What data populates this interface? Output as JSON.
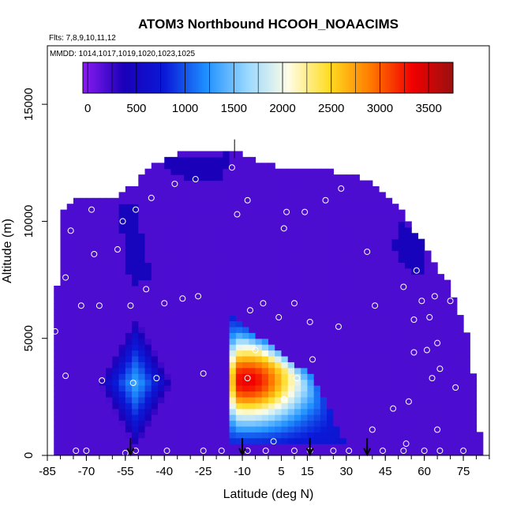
{
  "chart_data": {
    "type": "heatmap",
    "title": "ATOM3 Northbound HCOOH_NOAACIMS",
    "flights_label": "Flts: 7,8,9,10,11,12",
    "dates_label": "MMDD: 1014,1017,1019,1020,1023,1025",
    "xlabel": "Latitude (deg N)",
    "ylabel": "Altitude (m)",
    "xlim": [
      -85,
      85
    ],
    "ylim": [
      0,
      17500
    ],
    "x_ticks": [
      -85,
      -70,
      -55,
      -40,
      -25,
      -10,
      5,
      15,
      30,
      45,
      60,
      75
    ],
    "y_ticks": [
      0,
      5000,
      10000,
      15000
    ],
    "colorbar": {
      "range": [
        -50,
        3750
      ],
      "ticks": [
        0,
        500,
        1000,
        1500,
        2000,
        2500,
        3000,
        3500
      ],
      "colors": [
        "#8a1cf0",
        "#1a00b8",
        "#0a1ad8",
        "#1e90ff",
        "#9ad8ff",
        "#fffde6",
        "#ffdc20",
        "#ff7a00",
        "#f20000",
        "#9a1010"
      ]
    },
    "background_value": 180,
    "envelope": [
      [
        -82,
        0
      ],
      [
        -82,
        6000
      ],
      [
        -79,
        10500
      ],
      [
        -73,
        11000
      ],
      [
        -60,
        11000
      ],
      [
        -52,
        11500
      ],
      [
        -45,
        12400
      ],
      [
        -38,
        12800
      ],
      [
        -28,
        13000
      ],
      [
        -12,
        13000
      ],
      [
        0,
        12400
      ],
      [
        15,
        12200
      ],
      [
        30,
        12100
      ],
      [
        40,
        11600
      ],
      [
        50,
        10600
      ],
      [
        60,
        9000
      ],
      [
        70,
        7200
      ],
      [
        77,
        5000
      ],
      [
        80,
        2500
      ],
      [
        82,
        0
      ]
    ],
    "features": [
      {
        "name": "southern-diamond",
        "center": [
          -51,
          3100
        ],
        "half_width": 14,
        "half_height": 2800,
        "peak": 1350
      },
      {
        "name": "main-plume",
        "polygon": [
          [
            -15,
            6000
          ],
          [
            -15,
            500
          ],
          [
            30,
            500
          ],
          [
            17,
            3400
          ]
        ],
        "apex": [
          -8,
          3200
        ],
        "peak": 3350
      },
      {
        "name": "dark-streak",
        "polygon": [
          [
            -58,
            10800
          ],
          [
            -51,
            10800
          ],
          [
            -45,
            7500
          ],
          [
            -53,
            7300
          ]
        ],
        "peak": 450
      },
      {
        "name": "upper-streak",
        "polygon": [
          [
            -40,
            12700
          ],
          [
            -15,
            12900
          ],
          [
            -17,
            11800
          ],
          [
            -38,
            11900
          ]
        ],
        "peak": 380
      },
      {
        "name": "right-edge",
        "polygon": [
          [
            50,
            10200
          ],
          [
            62,
            9000
          ],
          [
            58,
            7400
          ],
          [
            48,
            8800
          ]
        ],
        "peak": 420
      }
    ],
    "sample_points": [
      [
        -82,
        5300
      ],
      [
        -78,
        3400
      ],
      [
        -78,
        7600
      ],
      [
        -76,
        9600
      ],
      [
        -72,
        6400
      ],
      [
        -68,
        10500
      ],
      [
        -67,
        8600
      ],
      [
        -65,
        6400
      ],
      [
        -64,
        3200
      ],
      [
        -58,
        8800
      ],
      [
        -56,
        10000
      ],
      [
        -53,
        6400
      ],
      [
        -52,
        3100
      ],
      [
        -51,
        10500
      ],
      [
        -47,
        7100
      ],
      [
        -45,
        11000
      ],
      [
        -43,
        3300
      ],
      [
        -40,
        6500
      ],
      [
        -36,
        11600
      ],
      [
        -33,
        6700
      ],
      [
        -28,
        11800
      ],
      [
        -27,
        6800
      ],
      [
        -25,
        3500
      ],
      [
        -14,
        12300
      ],
      [
        -12,
        10300
      ],
      [
        -8,
        10900
      ],
      [
        -8,
        3300
      ],
      [
        -7,
        6200
      ],
      [
        -5,
        4500
      ],
      [
        -2,
        6500
      ],
      [
        6,
        9700
      ],
      [
        7,
        10400
      ],
      [
        4,
        5900
      ],
      [
        6,
        2400
      ],
      [
        10,
        6500
      ],
      [
        11,
        3300
      ],
      [
        14,
        10400
      ],
      [
        16,
        5700
      ],
      [
        17,
        4100
      ],
      [
        22,
        10900
      ],
      [
        27,
        5500
      ],
      [
        28,
        11400
      ],
      [
        38,
        8700
      ],
      [
        40,
        1100
      ],
      [
        41,
        6400
      ],
      [
        48,
        2000
      ],
      [
        52,
        7200
      ],
      [
        54,
        2300
      ],
      [
        56,
        5800
      ],
      [
        56,
        4400
      ],
      [
        57,
        7900
      ],
      [
        59,
        6600
      ],
      [
        61,
        4500
      ],
      [
        62,
        5900
      ],
      [
        63,
        3300
      ],
      [
        64,
        8400
      ],
      [
        64,
        6800
      ],
      [
        65,
        1100
      ],
      [
        65,
        4800
      ],
      [
        66,
        3700
      ],
      [
        70,
        6600
      ],
      [
        72,
        2900
      ],
      [
        -74,
        200
      ],
      [
        -70,
        200
      ],
      [
        -51,
        200
      ],
      [
        -39,
        200
      ],
      [
        -25,
        200
      ],
      [
        -18,
        200
      ],
      [
        -8,
        200
      ],
      [
        -1,
        200
      ],
      [
        10,
        200
      ],
      [
        16,
        200
      ],
      [
        25,
        200
      ],
      [
        31,
        200
      ],
      [
        44,
        200
      ],
      [
        52,
        200
      ],
      [
        60,
        200
      ],
      [
        66,
        200
      ],
      [
        75,
        200
      ],
      [
        -55,
        100
      ],
      [
        2,
        600
      ],
      [
        53,
        500
      ]
    ],
    "flight_markers": [
      -53,
      -10,
      16,
      38
    ]
  }
}
